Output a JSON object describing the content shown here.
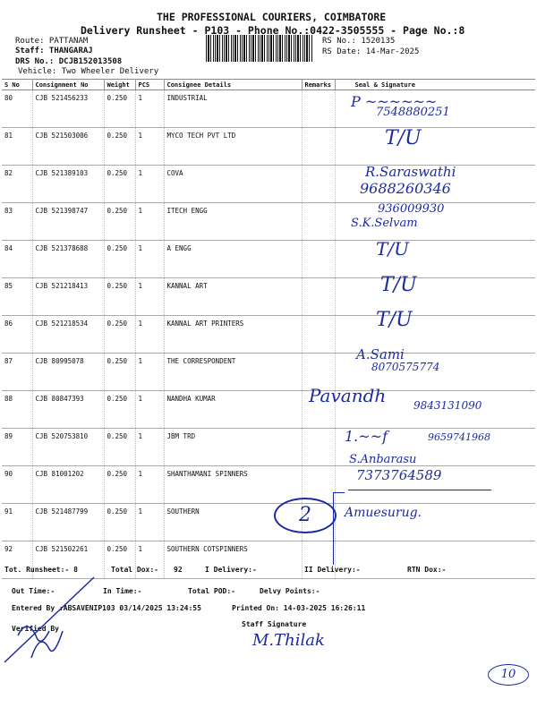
{
  "header": {
    "company": "THE PROFESSIONAL COURIERS, COIMBATORE",
    "subtitle": "Delivery Runsheet - P103 - Phone No.:0422-3505555 - Page No.:8",
    "route": "Route: PATTANAM",
    "staff": "Staff: THANGARAJ",
    "drs": "DRS No.: DCJB152013508",
    "vehicle": "Vehicle: Two Wheeler Delivery",
    "rs_no": "RS No.: 1520135",
    "rs_date": "RS Date: 14-Mar-2025"
  },
  "table": {
    "columns": [
      "S No",
      "Consignment No",
      "Weight",
      "PCS",
      "Consignee Details",
      "Remarks",
      "Seal & Signature"
    ],
    "rows": [
      {
        "sno": "80",
        "cno": "CJB 521456233",
        "weight": "0.250",
        "pcs": "1",
        "consignee": "INDUSTRIAL"
      },
      {
        "sno": "81",
        "cno": "CJB 521503006",
        "weight": "0.250",
        "pcs": "1",
        "consignee": "MYCO TECH PVT LTD"
      },
      {
        "sno": "82",
        "cno": "CJB 521389103",
        "weight": "0.250",
        "pcs": "1",
        "consignee": "COVA"
      },
      {
        "sno": "83",
        "cno": "CJB 521398747",
        "weight": "0.250",
        "pcs": "1",
        "consignee": "ITECH ENGG"
      },
      {
        "sno": "84",
        "cno": "CJB 521378688",
        "weight": "0.250",
        "pcs": "1",
        "consignee": "A ENGG"
      },
      {
        "sno": "85",
        "cno": "CJB 521218413",
        "weight": "0.250",
        "pcs": "1",
        "consignee": "KANNAL ART"
      },
      {
        "sno": "86",
        "cno": "CJB 521218534",
        "weight": "0.250",
        "pcs": "1",
        "consignee": "KANNAL ART PRINTERS"
      },
      {
        "sno": "87",
        "cno": "CJB 80995078",
        "weight": "0.250",
        "pcs": "1",
        "consignee": "THE CORRESPONDENT"
      },
      {
        "sno": "88",
        "cno": "CJB 80847393",
        "weight": "0.250",
        "pcs": "1",
        "consignee": "NANDHA KUMAR"
      },
      {
        "sno": "89",
        "cno": "CJB 520753810",
        "weight": "0.250",
        "pcs": "1",
        "consignee": "JBM TRD"
      },
      {
        "sno": "90",
        "cno": "CJB 81001202",
        "weight": "0.250",
        "pcs": "1",
        "consignee": "SHANTHAMANI SPINNERS"
      },
      {
        "sno": "91",
        "cno": "CJB 521487799",
        "weight": "0.250",
        "pcs": "1",
        "consignee": "SOUTHERN"
      },
      {
        "sno": "92",
        "cno": "CJB 521502261",
        "weight": "0.250",
        "pcs": "1",
        "consignee": "SOUTHERN COTSPINNERS"
      }
    ]
  },
  "handwriting": {
    "r80_phone": "7548880251",
    "r81": "T/U",
    "r82_name": "R.Saraswathi",
    "r82_phone": "9688260346",
    "r83_phone": "936009930",
    "r83_name": "S.K.Selvam",
    "r84": "T/U",
    "r85": "T/U",
    "r86": "T/U",
    "r87_name": "A.Sami",
    "r87_phone": "8070575774",
    "r88_name": "Pavandh",
    "r88_phone": "9843131090",
    "r89_phone": "9659741968",
    "r90_name": "S.Anbarasu",
    "r90_phone": "7373764589",
    "circled": "2",
    "page_circle": "10",
    "staff_sig": "M.Thilak"
  },
  "footer": {
    "tot_runsheet": "Tot. Runsheet:- 8",
    "total_dox": "Total Dox:-",
    "total_dox_value": "92",
    "i_delivery": "I Delivery:-",
    "ii_delivery": "II Delivery:-",
    "rtn_dox": "RTN Dox:-",
    "out_time": "Out Time:-",
    "in_time": "In Time:-",
    "total_pod": "Total POD:-",
    "delvy_points": "Delvy Points:-",
    "entered_by": "Entered By :ABSAVENIP103 03/14/2025 13:24:55",
    "printed_on": "Printed On: 14-03-2025 16:26:11",
    "verified_by": "Verified By",
    "staff_signature": "Staff Signature"
  },
  "colors": {
    "ink": "#1c2aa0",
    "print": "#111111"
  }
}
